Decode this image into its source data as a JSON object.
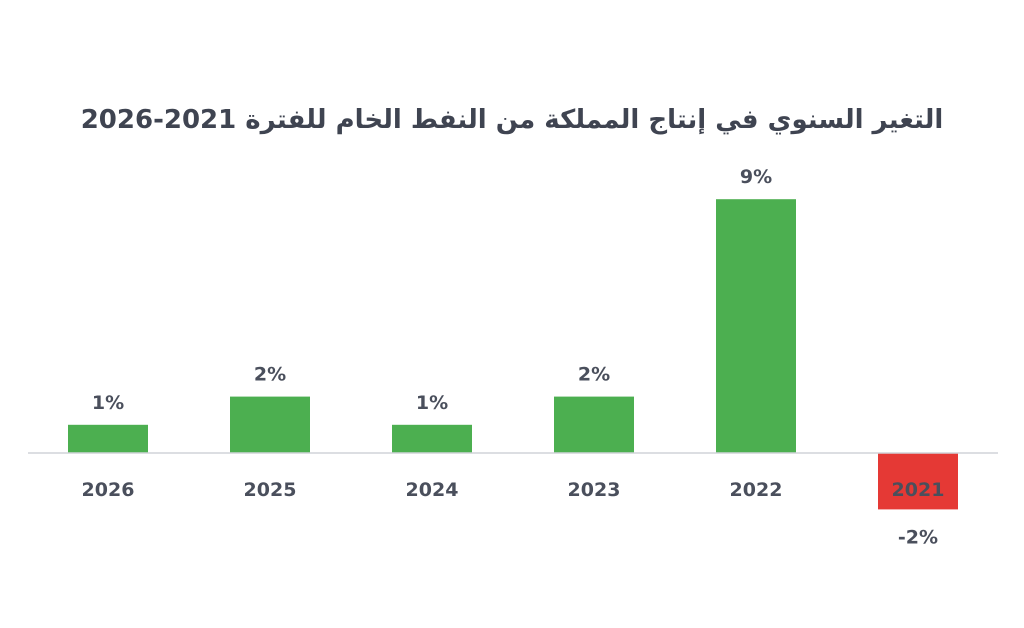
{
  "chart_data": {
    "type": "bar",
    "title": "التغير السنوي في إنتاج المملكة من النفط الخام للفترة 2021-2026",
    "xlabel": "",
    "ylabel": "",
    "categories": [
      "2026",
      "2025",
      "2024",
      "2023",
      "2022",
      "2021"
    ],
    "values": [
      1,
      2,
      1,
      2,
      9,
      -2
    ],
    "value_labels": [
      "1%",
      "2%",
      "1%",
      "2%",
      "9%",
      "-2%"
    ],
    "unit": "%",
    "ylim": [
      -2,
      9
    ],
    "grid": false,
    "legend": "none",
    "colors": {
      "positive": "#4caf50",
      "negative": "#e53935",
      "axis": "#d0d3d8",
      "text": "#4a4f5c",
      "title": "#3f4451"
    }
  }
}
